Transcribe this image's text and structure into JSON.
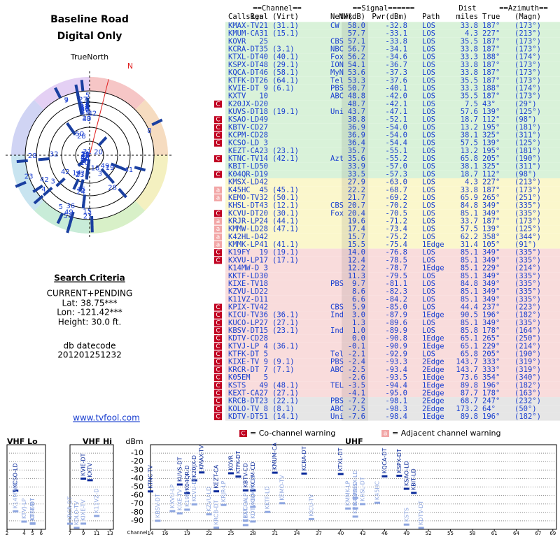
{
  "header": {
    "title": "Baseline Road",
    "subtitle": "Digital Only",
    "north": "TrueNorth",
    "n": "N"
  },
  "criteria": {
    "title": "Search Criteria",
    "mode": "CURRENT+PENDING",
    "lat": "Lat: 38.75***",
    "lon": "Lon: -121.42***",
    "height": "Height: 30.0 ft.",
    "db_label": "db datecode",
    "db_code": "201201251232",
    "site": "www.tvfool.com"
  },
  "table": {
    "groups": [
      "==Channel==",
      "==Signal======",
      "Dist",
      "==Azimuth=="
    ],
    "columns": [
      "Callsign",
      "Real",
      "(Virt)",
      "Netwk",
      "NM(dB)",
      "Pwr(dBm)",
      "Path",
      "miles",
      "True",
      "(Magn)"
    ],
    "rows": [
      {
        "call": "KMAX-TV",
        "real": 21,
        "virt": "(31.1)",
        "netwk": "CW",
        "nm": "58.0",
        "pwr": "-32.8",
        "path": "LOS",
        "miles": "33.8",
        "true": "187°",
        "magn": "(173°)",
        "bg": "#d9f2d9"
      },
      {
        "call": "KMUM-CA",
        "real": 31,
        "virt": "(15.1)",
        "nm": "57.7",
        "pwr": "-33.1",
        "path": "LOS",
        "miles": "4.3",
        "true": "227°",
        "magn": "(213°)",
        "bg": "#d9f2d9"
      },
      {
        "call": "KOVR",
        "real": 25,
        "netwk": "CBS",
        "nm": "57.1",
        "pwr": "-33.8",
        "path": "LOS",
        "miles": "35.5",
        "true": "187°",
        "magn": "(173°)",
        "bg": "#d9f2d9"
      },
      {
        "call": "KCRA-DT",
        "real": 35,
        "virt": "(3.1)",
        "netwk": "NBC",
        "nm": "56.7",
        "pwr": "-34.1",
        "path": "LOS",
        "miles": "33.8",
        "true": "187°",
        "magn": "(173°)",
        "bg": "#d9f2d9"
      },
      {
        "call": "KTXL-DT",
        "real": 40,
        "virt": "(40.1)",
        "netwk": "Fox",
        "nm": "56.2",
        "pwr": "-34.6",
        "path": "LOS",
        "miles": "33.3",
        "true": "188°",
        "magn": "(174°)",
        "bg": "#d9f2d9"
      },
      {
        "call": "KSPX-DT",
        "real": 48,
        "virt": "(29.1)",
        "netwk": "ION",
        "nm": "54.1",
        "pwr": "-36.7",
        "path": "LOS",
        "miles": "33.8",
        "true": "187°",
        "magn": "(173°)",
        "bg": "#d9f2d9"
      },
      {
        "call": "KQCA-DT",
        "real": 46,
        "virt": "(58.1)",
        "netwk": "MyN",
        "nm": "53.6",
        "pwr": "-37.3",
        "path": "LOS",
        "miles": "33.8",
        "true": "187°",
        "magn": "(173°)",
        "bg": "#d9f2d9"
      },
      {
        "call": "KTFK-DT",
        "real": 26,
        "virt": "(64.1)",
        "netwk": "Tel",
        "nm": "53.3",
        "pwr": "-37.6",
        "path": "LOS",
        "miles": "35.5",
        "true": "187°",
        "magn": "(173°)",
        "bg": "#d9f2d9"
      },
      {
        "call": "KVIE-DT",
        "real": 9,
        "virt": "(6.1)",
        "netwk": "PBS",
        "nm": "50.7",
        "pwr": "-40.1",
        "path": "LOS",
        "miles": "33.3",
        "true": "188°",
        "magn": "(174°)",
        "bg": "#d9f2d9"
      },
      {
        "call": "KXTV",
        "real": 10,
        "netwk": "ABC",
        "nm": "48.8",
        "pwr": "-42.0",
        "path": "LOS",
        "miles": "35.5",
        "true": "187°",
        "magn": "(173°)",
        "bg": "#d9f2d9"
      },
      {
        "call": "K20JX-D",
        "real": 20,
        "nm": "48.7",
        "pwr": "-42.1",
        "path": "LOS",
        "miles": "7.5",
        "true": "43°",
        "magn": "(29°)",
        "warn": "C",
        "bg": "#d9f2d9"
      },
      {
        "call": "KUVS-DT",
        "real": 18,
        "virt": "(19.1)",
        "netwk": "Uni",
        "nm": "43.7",
        "pwr": "-47.1",
        "path": "LOS",
        "miles": "57.6",
        "true": "139°",
        "magn": "(125°)",
        "bg": "#d9f2d9"
      },
      {
        "call": "KSAO-LD",
        "real": 49,
        "nm": "38.8",
        "pwr": "-52.1",
        "path": "LOS",
        "miles": "18.7",
        "true": "112°",
        "magn": "(98°)",
        "warn": "C",
        "bg": "#d9f2d9"
      },
      {
        "call": "KBTV-CD",
        "real": 27,
        "nm": "36.9",
        "pwr": "-54.0",
        "path": "LOS",
        "miles": "13.2",
        "true": "195°",
        "magn": "(181°)",
        "warn": "C",
        "bg": "#d9f2d9"
      },
      {
        "call": "KCPM-CD",
        "real": 28,
        "nm": "36.9",
        "pwr": "-54.0",
        "path": "LOS",
        "miles": "38.1",
        "true": "325°",
        "magn": "(311°)",
        "warn": "C",
        "bg": "#d9f2d9"
      },
      {
        "call": "KCSO-LD",
        "real": 3,
        "nm": "36.4",
        "pwr": "-54.4",
        "path": "LOS",
        "miles": "57.5",
        "true": "139°",
        "magn": "(125°)",
        "warn": "C",
        "bg": "#d9f2d9"
      },
      {
        "call": "KEZT-CA",
        "real": 23,
        "virt": "(23.1)",
        "nm": "35.7",
        "pwr": "-55.1",
        "path": "LOS",
        "miles": "13.2",
        "true": "195°",
        "magn": "(181°)",
        "bg": "#d9f2d9"
      },
      {
        "call": "KTNC-TV",
        "real": 14,
        "virt": "(42.1)",
        "netwk": "Azt",
        "nm": "35.6",
        "pwr": "-55.2",
        "path": "LOS",
        "miles": "65.8",
        "true": "205°",
        "magn": "(190°)",
        "warn": "C",
        "bg": "#d9f2d9"
      },
      {
        "call": "KBIT-LD",
        "real": 50,
        "nm": "33.9",
        "pwr": "-57.0",
        "path": "LOS",
        "miles": "38.1",
        "true": "325°",
        "magn": "(311°)",
        "bg": "#d9f2d9"
      },
      {
        "call": "K04QR-D",
        "real": 19,
        "nm": "33.5",
        "pwr": "-57.3",
        "path": "LOS",
        "miles": "18.7",
        "true": "112°",
        "magn": "(98°)",
        "warn": "C",
        "bg": "#d9f2d9"
      },
      {
        "call": "KMSX-LD",
        "real": 42,
        "nm": "27.9",
        "pwr": "-63.0",
        "path": "LOS",
        "miles": "4.3",
        "true": "227°",
        "magn": "(213°)",
        "bg": "#fbf7cc"
      },
      {
        "call": "K45HC",
        "real": 45,
        "virt": "(45.1)",
        "nm": "22.2",
        "pwr": "-68.7",
        "path": "LOS",
        "miles": "33.8",
        "true": "187°",
        "magn": "(173°)",
        "warn": "a",
        "bg": "#fbf7cc"
      },
      {
        "call": "KEMO-TV",
        "real": 32,
        "virt": "(50.1)",
        "nm": "21.7",
        "pwr": "-69.2",
        "path": "LOS",
        "miles": "65.9",
        "true": "265°",
        "magn": "(251°)",
        "warn": "a",
        "bg": "#fbf7cc"
      },
      {
        "call": "KHSL-DT",
        "real": 43,
        "virt": "(12.1)",
        "netwk": "CBS",
        "nm": "20.7",
        "pwr": "-70.2",
        "path": "LOS",
        "miles": "84.8",
        "true": "349°",
        "magn": "(335°)",
        "bg": "#fbf7cc"
      },
      {
        "call": "KCVU-DT",
        "real": 20,
        "virt": "(30.1)",
        "netwk": "Fox",
        "nm": "20.4",
        "pwr": "-70.5",
        "path": "LOS",
        "miles": "85.1",
        "true": "349°",
        "magn": "(335°)",
        "warn": "C",
        "bg": "#fbf7cc"
      },
      {
        "call": "KRJR-LP",
        "real": 24,
        "virt": "(44.1)",
        "nm": "19.6",
        "pwr": "-71.2",
        "path": "LOS",
        "miles": "33.7",
        "true": "187°",
        "magn": "(173°)",
        "warn": "a",
        "bg": "#fbf7cc"
      },
      {
        "call": "KMMW-LD",
        "real": 28,
        "virt": "(47.1)",
        "nm": "17.4",
        "pwr": "-73.4",
        "path": "LOS",
        "miles": "57.5",
        "true": "139°",
        "magn": "(125°)",
        "warn": "a",
        "bg": "#fbf7cc"
      },
      {
        "call": "K42HL-D",
        "real": 42,
        "nm": "15.7",
        "pwr": "-75.2",
        "path": "LOS",
        "miles": "62.2",
        "true": "358°",
        "magn": "(344°)",
        "warn": "a",
        "bg": "#fbf7cc"
      },
      {
        "call": "KMMK-LP",
        "real": 41,
        "virt": "(41.1)",
        "nm": "15.5",
        "pwr": "-75.4",
        "path": "1Edge",
        "miles": "31.4",
        "true": "105°",
        "magn": "(91°)",
        "warn": "a",
        "bg": "#fbf7cc"
      },
      {
        "call": "K19FY",
        "real": 19,
        "virt": "(19.1)",
        "nm": "14.0",
        "pwr": "-76.8",
        "path": "LOS",
        "miles": "85.1",
        "true": "349°",
        "magn": "(335°)",
        "warn": "C",
        "bg": "#f9dcdc"
      },
      {
        "call": "KXVU-LP",
        "real": 17,
        "virt": "(17.1)",
        "nm": "12.4",
        "pwr": "-78.5",
        "path": "LOS",
        "miles": "85.1",
        "true": "349°",
        "magn": "(335°)",
        "warn": "C",
        "bg": "#f9dcdc"
      },
      {
        "call": "K14MW-D",
        "real": 3,
        "nm": "12.2",
        "pwr": "-78.7",
        "path": "1Edge",
        "miles": "85.1",
        "true": "229°",
        "magn": "(214°)",
        "bg": "#f9dcdc"
      },
      {
        "call": "KKTF-LD",
        "real": 30,
        "nm": "11.3",
        "pwr": "-79.5",
        "path": "LOS",
        "miles": "85.1",
        "true": "349°",
        "magn": "(335°)",
        "bg": "#f9dcdc"
      },
      {
        "call": "KIXE-TV",
        "real": 18,
        "netwk": "PBS",
        "nm": "9.7",
        "pwr": "-81.1",
        "path": "LOS",
        "miles": "84.8",
        "true": "349°",
        "magn": "(335°)",
        "bg": "#f9dcdc"
      },
      {
        "call": "KZVU-LD",
        "real": 22,
        "nm": "8.6",
        "pwr": "-82.3",
        "path": "LOS",
        "miles": "85.1",
        "true": "349°",
        "magn": "(335°)",
        "bg": "#f9dcdc"
      },
      {
        "call": "K11VZ-D",
        "real": 11,
        "nm": "6.6",
        "pwr": "-84.2",
        "path": "LOS",
        "miles": "85.1",
        "true": "349°",
        "magn": "(335°)",
        "bg": "#f9dcdc"
      },
      {
        "call": "KPIX-TV",
        "real": 42,
        "netwk": "CBS",
        "nm": "5.9",
        "pwr": "-85.0",
        "path": "LOS",
        "miles": "44.4",
        "true": "237°",
        "magn": "(223°)",
        "warn": "C",
        "bg": "#f9dcdc"
      },
      {
        "call": "KICU-TV",
        "real": 36,
        "virt": "(36.1)",
        "netwk": "Ind",
        "nm": "3.0",
        "pwr": "-87.9",
        "path": "1Edge",
        "miles": "90.5",
        "true": "196°",
        "magn": "(182°)",
        "warn": "C",
        "bg": "#f9dcdc"
      },
      {
        "call": "KUCO-LP",
        "real": 27,
        "virt": "(27.1)",
        "nm": "1.3",
        "pwr": "-89.6",
        "path": "LOS",
        "miles": "85.1",
        "true": "349°",
        "magn": "(335°)",
        "warn": "C",
        "bg": "#f9dcdc"
      },
      {
        "call": "KBSV-DT",
        "real": 15,
        "virt": "(23.1)",
        "netwk": "Ind",
        "nm": "1.0",
        "pwr": "-89.9",
        "path": "LOS",
        "miles": "85.8",
        "true": "178°",
        "magn": "(164°)",
        "warn": "C",
        "bg": "#f9dcdc"
      },
      {
        "call": "KDTV-CD",
        "real": 28,
        "nm": "0.0",
        "pwr": "-90.8",
        "path": "1Edge",
        "miles": "65.1",
        "true": "265°",
        "magn": "(250°)",
        "warn": "C",
        "bg": "#f9dcdc"
      },
      {
        "call": "KTVJ-LP",
        "real": 4,
        "virt": "(36.1)",
        "nm": "-0.1",
        "pwr": "-90.9",
        "path": "1Edge",
        "miles": "65.1",
        "true": "229°",
        "magn": "(214°)",
        "warn": "C",
        "bg": "#f9dcdc"
      },
      {
        "call": "KTFK-DT",
        "real": 5,
        "netwk": "Tel",
        "nm": "-2.1",
        "pwr": "-92.9",
        "path": "LOS",
        "miles": "65.8",
        "true": "205°",
        "magn": "(190°)",
        "warn": "C",
        "bg": "#f9dcdc"
      },
      {
        "call": "KIXE-TV",
        "real": 9,
        "virt": "(9.1)",
        "netwk": "PBS",
        "nm": "-2.4",
        "pwr": "-93.3",
        "path": "2Edge",
        "miles": "143.7",
        "true": "333°",
        "magn": "(319°)",
        "warn": "C",
        "bg": "#f9dcdc"
      },
      {
        "call": "KRCR-DT",
        "real": 7,
        "virt": "(7.1)",
        "netwk": "ABC",
        "nm": "-2.5",
        "pwr": "-93.4",
        "path": "2Edge",
        "miles": "143.7",
        "true": "333°",
        "magn": "(319°)",
        "warn": "C",
        "bg": "#f9dcdc"
      },
      {
        "call": "K05EM",
        "real": 5,
        "nm": "-2.6",
        "pwr": "-93.5",
        "path": "1Edge",
        "miles": "73.6",
        "true": "354°",
        "magn": "(340°)",
        "warn": "C",
        "bg": "#f9dcdc"
      },
      {
        "call": "KSTS",
        "real": 49,
        "virt": "(48.1)",
        "netwk": "TEL",
        "nm": "-3.5",
        "pwr": "-94.4",
        "path": "1Edge",
        "miles": "89.8",
        "true": "196°",
        "magn": "(182°)",
        "warn": "C",
        "bg": "#f9dcdc"
      },
      {
        "call": "KEXT-CA",
        "real": 27,
        "virt": "(27.1)",
        "nm": "-4.1",
        "pwr": "-95.0",
        "path": "2Edge",
        "miles": "87.7",
        "true": "178°",
        "magn": "(163°)",
        "warn": "C",
        "bg": "#f9dcdc"
      },
      {
        "call": "KRCB-DT",
        "real": 23,
        "virt": "(22.1)",
        "netwk": "PBS",
        "nm": "-7.2",
        "pwr": "-98.1",
        "path": "2Edge",
        "miles": "68.7",
        "true": "247°",
        "magn": "(232°)",
        "warn": "C",
        "bg": "#e6e6e6"
      },
      {
        "call": "KOLO-TV",
        "real": 8,
        "virt": "(8.1)",
        "netwk": "ABC",
        "nm": "-7.5",
        "pwr": "-98.3",
        "path": "2Edge",
        "miles": "173.2",
        "true": "64°",
        "magn": "(50°)",
        "warn": "C",
        "bg": "#e6e6e6"
      },
      {
        "call": "KDTV-DT",
        "real": 51,
        "virt": "(14.1)",
        "netwk": "Uni",
        "nm": "-7.6",
        "pwr": "-98.4",
        "path": "1Edge",
        "miles": "89.8",
        "true": "196°",
        "magn": "(182°)",
        "warn": "C",
        "bg": "#e6e6e6"
      }
    ]
  },
  "legend": {
    "co_mark": "C",
    "co_text": "= Co-channel warning",
    "adj_mark": "a",
    "adj_text": "= Adjacent channel warning"
  },
  "spectrum": {
    "unit": "dBm",
    "channel_label": "Channel",
    "ylim": [
      -100,
      0
    ],
    "yticks": [
      -10,
      -20,
      -30,
      -40,
      -50,
      -60,
      -70,
      -80,
      -90
    ],
    "panels": [
      {
        "label": "VHF Lo",
        "xlim": [
          2,
          6.5
        ],
        "xticks": [
          2,
          4,
          5,
          6
        ]
      },
      {
        "label": "VHF Hi",
        "xlim": [
          7,
          13.5
        ],
        "xticks": [
          7,
          9,
          11,
          13
        ]
      },
      {
        "label": "UHF",
        "xlim": [
          14,
          69.5
        ],
        "xticks": [
          14,
          16,
          19,
          22,
          25,
          28,
          31,
          34,
          37,
          40,
          43,
          46,
          49,
          52,
          55,
          58,
          61,
          64,
          67,
          69
        ]
      }
    ]
  }
}
